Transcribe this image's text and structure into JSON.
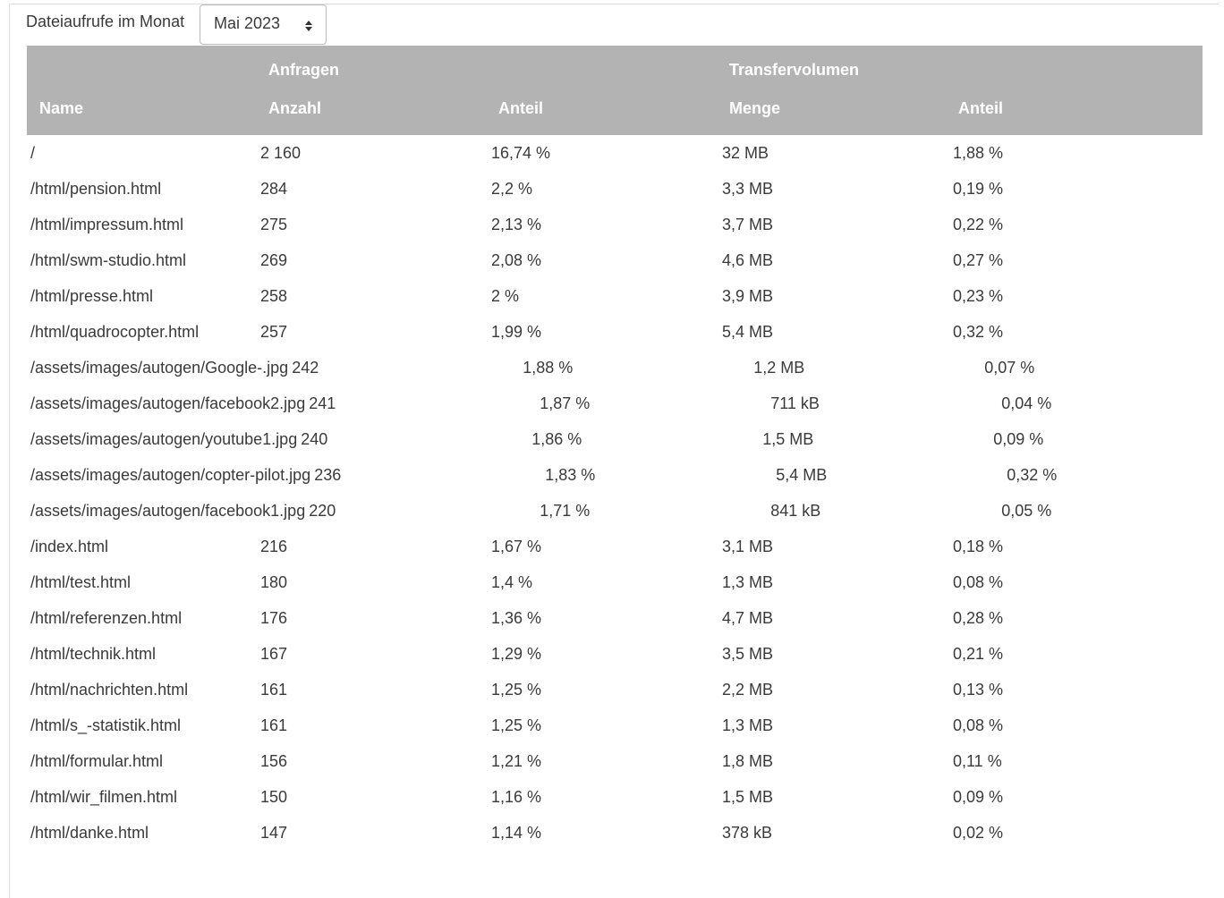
{
  "filter": {
    "label": "Dateiaufrufe im Monat",
    "selected": "Mai 2023"
  },
  "table": {
    "groups": [
      "Anfragen",
      "Transfervolumen"
    ],
    "columns": [
      "Name",
      "Anzahl",
      "Anteil",
      "Menge",
      "Anteil"
    ],
    "rows": [
      [
        "/",
        "2 160",
        "16,74 %",
        "32 MB",
        "1,88 %"
      ],
      [
        "/html/pension.html",
        "284",
        "2,2 %",
        "3,3 MB",
        "0,19 %"
      ],
      [
        "/html/impressum.html",
        "275",
        "2,13 %",
        "3,7 MB",
        "0,22 %"
      ],
      [
        "/html/swm-studio.html",
        "269",
        "2,08 %",
        "4,6 MB",
        "0,27 %"
      ],
      [
        "/html/presse.html",
        "258",
        "2 %",
        "3,9 MB",
        "0,23 %"
      ],
      [
        "/html/quadrocopter.html",
        "257",
        "1,99 %",
        "5,4 MB",
        "0,32 %"
      ],
      [
        "/assets/images/autogen/Google-.jpg",
        "242",
        "1,88 %",
        "1,2 MB",
        "0,07 %"
      ],
      [
        "/assets/images/autogen/facebook2.jpg",
        "241",
        "1,87 %",
        "711 kB",
        "0,04 %"
      ],
      [
        "/assets/images/autogen/youtube1.jpg",
        "240",
        "1,86 %",
        "1,5 MB",
        "0,09 %"
      ],
      [
        "/assets/images/autogen/copter-pilot.jpg",
        "236",
        "1,83 %",
        "5,4 MB",
        "0,32 %"
      ],
      [
        "/assets/images/autogen/facebook1.jpg",
        "220",
        "1,71 %",
        "841 kB",
        "0,05 %"
      ],
      [
        "/index.html",
        "216",
        "1,67 %",
        "3,1 MB",
        "0,18 %"
      ],
      [
        "/html/test.html",
        "180",
        "1,4 %",
        "1,3 MB",
        "0,08 %"
      ],
      [
        "/html/referenzen.html",
        "176",
        "1,36 %",
        "4,7 MB",
        "0,28 %"
      ],
      [
        "/html/technik.html",
        "167",
        "1,29 %",
        "3,5 MB",
        "0,21 %"
      ],
      [
        "/html/nachrichten.html",
        "161",
        "1,25 %",
        "2,2 MB",
        "0,13 %"
      ],
      [
        "/html/s_-statistik.html",
        "161",
        "1,25 %",
        "1,3 MB",
        "0,08 %"
      ],
      [
        "/html/formular.html",
        "156",
        "1,21 %",
        "1,8 MB",
        "0,11 %"
      ],
      [
        "/html/wir_filmen.html",
        "150",
        "1,16 %",
        "1,5 MB",
        "0,09 %"
      ],
      [
        "/html/danke.html",
        "147",
        "1,14 %",
        "378 kB",
        "0,02 %"
      ]
    ]
  }
}
